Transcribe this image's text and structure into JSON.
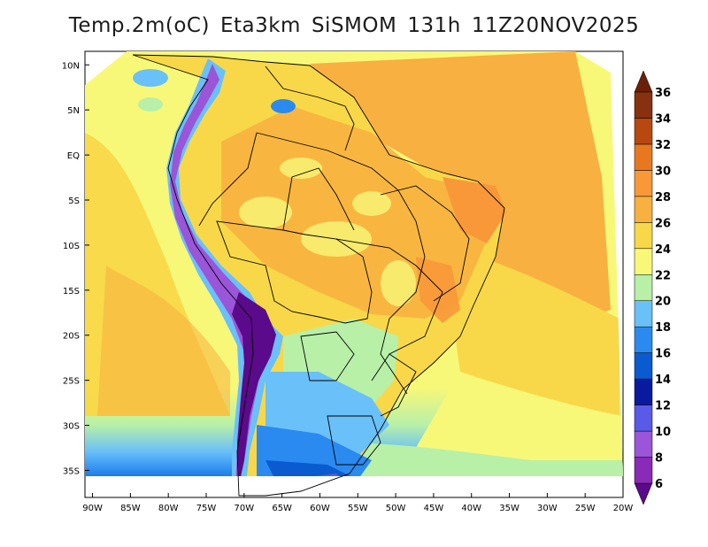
{
  "title": {
    "variable": "Temp.2m(oC)",
    "model": "Eta3km",
    "system": "SiSMOM",
    "lead_time": "131h",
    "valid_time": "11Z20NOV2025"
  },
  "map": {
    "lat_labels": [
      "10N",
      "5N",
      "EQ",
      "5S",
      "10S",
      "15S",
      "20S",
      "25S",
      "30S",
      "35S"
    ],
    "lon_labels": [
      "90W",
      "85W",
      "80W",
      "75W",
      "70W",
      "65W",
      "60W",
      "55W",
      "50W",
      "45W",
      "40W",
      "35W",
      "30W",
      "25W",
      "20W"
    ],
    "lat_values": [
      10,
      5,
      0,
      -5,
      -10,
      -15,
      -20,
      -25,
      -30,
      -35
    ],
    "lon_values": [
      -90,
      -85,
      -80,
      -75,
      -70,
      -65,
      -60,
      -55,
      -50,
      -45,
      -40,
      -35,
      -30,
      -25,
      -20
    ],
    "extent": {
      "lon_min": -91,
      "lon_max": -20,
      "lat_min": -38,
      "lat_max": 11.5
    }
  },
  "colorbar": {
    "unit": "oC",
    "levels": [
      "6",
      "8",
      "10",
      "12",
      "14",
      "16",
      "18",
      "20",
      "22",
      "24",
      "26",
      "28",
      "30",
      "32",
      "34",
      "36"
    ],
    "colors": [
      "#5a0a8a",
      "#8a2bb8",
      "#9a55d8",
      "#5a5ae8",
      "#0a1aa0",
      "#0a5ad0",
      "#2a8af0",
      "#6ac0f8",
      "#b8f0a8",
      "#f8f878",
      "#f8d848",
      "#f8b040",
      "#f89838",
      "#e87820",
      "#b84810",
      "#883010",
      "#6a2008"
    ]
  }
}
